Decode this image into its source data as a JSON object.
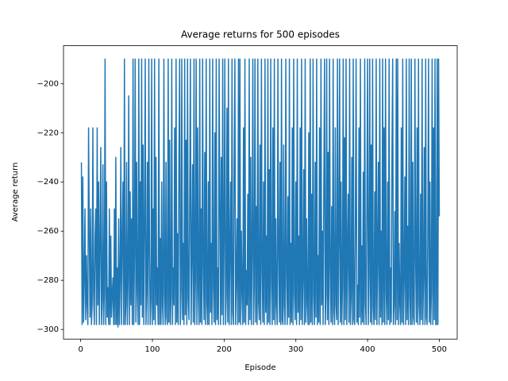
{
  "chart_data": {
    "type": "line",
    "title": "Average returns for 500 episodes",
    "x_label": "Episode",
    "y_label": "Average return",
    "xlim": [
      -23.95,
      524.95
    ],
    "ylim": [
      -303.9,
      -184.6
    ],
    "xticks": [
      0,
      100,
      200,
      300,
      400,
      500
    ],
    "yticks": [
      {
        "value": -300,
        "label": "−300"
      },
      {
        "value": -280,
        "label": "−280"
      },
      {
        "value": -260,
        "label": "−260"
      },
      {
        "value": -240,
        "label": "−240"
      },
      {
        "value": -220,
        "label": "−220"
      },
      {
        "value": -200,
        "label": "−200"
      }
    ],
    "grid": false,
    "series": [
      {
        "color": "#1f77b4",
        "x": [
          1,
          2,
          3,
          4,
          5,
          6,
          7,
          8,
          9,
          10,
          11,
          12,
          13,
          14,
          15,
          16,
          17,
          18,
          19,
          20,
          21,
          22,
          23,
          24,
          25,
          26,
          27,
          28,
          29,
          30,
          31,
          32,
          33,
          34,
          35,
          36,
          37,
          38,
          39,
          40,
          41,
          42,
          43,
          44,
          45,
          46,
          47,
          48,
          49,
          50,
          51,
          52,
          53,
          54,
          55,
          56,
          57,
          58,
          59,
          60,
          61,
          62,
          63,
          64,
          65,
          66,
          67,
          68,
          69,
          70,
          71,
          72,
          73,
          74,
          75,
          76,
          77,
          78,
          79,
          80,
          81,
          82,
          83,
          84,
          85,
          86,
          87,
          88,
          89,
          90,
          91,
          92,
          93,
          94,
          95,
          96,
          97,
          98,
          99,
          100,
          101,
          102,
          103,
          104,
          105,
          106,
          107,
          108,
          109,
          110,
          111,
          112,
          113,
          114,
          115,
          116,
          117,
          118,
          119,
          120,
          121,
          122,
          123,
          124,
          125,
          126,
          127,
          128,
          129,
          130,
          131,
          132,
          133,
          134,
          135,
          136,
          137,
          138,
          139,
          140,
          141,
          142,
          143,
          144,
          145,
          146,
          147,
          148,
          149,
          150,
          151,
          152,
          153,
          154,
          155,
          156,
          157,
          158,
          159,
          160,
          161,
          162,
          163,
          164,
          165,
          166,
          167,
          168,
          169,
          170,
          171,
          172,
          173,
          174,
          175,
          176,
          177,
          178,
          179,
          180,
          181,
          182,
          183,
          184,
          185,
          186,
          187,
          188,
          189,
          190,
          191,
          192,
          193,
          194,
          195,
          196,
          197,
          198,
          199,
          200,
          201,
          202,
          203,
          204,
          205,
          206,
          207,
          208,
          209,
          210,
          211,
          212,
          213,
          214,
          215,
          216,
          217,
          218,
          219,
          220,
          221,
          222,
          223,
          224,
          225,
          226,
          227,
          228,
          229,
          230,
          231,
          232,
          233,
          234,
          235,
          236,
          237,
          238,
          239,
          240,
          241,
          242,
          243,
          244,
          245,
          246,
          247,
          248,
          249,
          250,
          251,
          252,
          253,
          254,
          255,
          256,
          257,
          258,
          259,
          260,
          261,
          262,
          263,
          264,
          265,
          266,
          267,
          268,
          269,
          270,
          271,
          272,
          273,
          274,
          275,
          276,
          277,
          278,
          279,
          280,
          281,
          282,
          283,
          284,
          285,
          286,
          287,
          288,
          289,
          290,
          291,
          292,
          293,
          294,
          295,
          296,
          297,
          298,
          299,
          300,
          301,
          302,
          303,
          304,
          305,
          306,
          307,
          308,
          309,
          310,
          311,
          312,
          313,
          314,
          315,
          316,
          317,
          318,
          319,
          320,
          321,
          322,
          323,
          324,
          325,
          326,
          327,
          328,
          329,
          330,
          331,
          332,
          333,
          334,
          335,
          336,
          337,
          338,
          339,
          340,
          341,
          342,
          343,
          344,
          345,
          346,
          347,
          348,
          349,
          350,
          351,
          352,
          353,
          354,
          355,
          356,
          357,
          358,
          359,
          360,
          361,
          362,
          363,
          364,
          365,
          366,
          367,
          368,
          369,
          370,
          371,
          372,
          373,
          374,
          375,
          376,
          377,
          378,
          379,
          380,
          381,
          382,
          383,
          384,
          385,
          386,
          387,
          388,
          389,
          390,
          391,
          392,
          393,
          394,
          395,
          396,
          397,
          398,
          399,
          400,
          401,
          402,
          403,
          404,
          405,
          406,
          407,
          408,
          409,
          410,
          411,
          412,
          413,
          414,
          415,
          416,
          417,
          418,
          419,
          420,
          421,
          422,
          423,
          424,
          425,
          426,
          427,
          428,
          429,
          430,
          431,
          432,
          433,
          434,
          435,
          436,
          437,
          438,
          439,
          440,
          441,
          442,
          443,
          444,
          445,
          446,
          447,
          448,
          449,
          450,
          451,
          452,
          453,
          454,
          455,
          456,
          457,
          458,
          459,
          460,
          461,
          462,
          463,
          464,
          465,
          466,
          467,
          468,
          469,
          470,
          471,
          472,
          473,
          474,
          475,
          476,
          477,
          478,
          479,
          480,
          481,
          482,
          483,
          484,
          485,
          486,
          487,
          488,
          489,
          490,
          491,
          492,
          493,
          494,
          495,
          496,
          497,
          498,
          499,
          500
        ],
        "values": [
          -232,
          -298,
          -238,
          -297,
          -280,
          -251,
          -296,
          -270,
          -290,
          -298,
          -218,
          -260,
          -295,
          -251,
          -298,
          -290,
          -218,
          -285,
          -298,
          -263,
          -251,
          -298,
          -218,
          -290,
          -240,
          -298,
          -265,
          -226,
          -298,
          -288,
          -233,
          -298,
          -285,
          -190,
          -298,
          -240,
          -295,
          -283,
          -298,
          -251,
          -298,
          -262,
          -295,
          -286,
          -279,
          -298,
          -251,
          -298,
          -230,
          -298,
          -275,
          -299,
          -255,
          -298,
          -280,
          -226,
          -298,
          -264,
          -240,
          -298,
          -190,
          -298,
          -290,
          -232,
          -298,
          -280,
          -205,
          -298,
          -244,
          -290,
          -255,
          -298,
          -190,
          -298,
          -270,
          -190,
          -297,
          -232,
          -285,
          -298,
          -190,
          -298,
          -240,
          -290,
          -190,
          -295,
          -225,
          -298,
          -261,
          -190,
          -298,
          -285,
          -232,
          -298,
          -190,
          -270,
          -298,
          -288,
          -190,
          -298,
          -251,
          -296,
          -190,
          -298,
          -230,
          -290,
          -275,
          -298,
          -190,
          -298,
          -263,
          -298,
          -240,
          -290,
          -298,
          -190,
          -285,
          -298,
          -232,
          -295,
          -298,
          -190,
          -297,
          -223,
          -298,
          -286,
          -190,
          -298,
          -275,
          -290,
          -218,
          -298,
          -190,
          -297,
          -261,
          -298,
          -232,
          -190,
          -298,
          -284,
          -190,
          -296,
          -265,
          -298,
          -190,
          -294,
          -223,
          -298,
          -190,
          -288,
          -296,
          -248,
          -190,
          -298,
          -270,
          -233,
          -297,
          -190,
          -298,
          -280,
          -190,
          -298,
          -218,
          -285,
          -298,
          -190,
          -297,
          -251,
          -298,
          -190,
          -275,
          -296,
          -228,
          -298,
          -190,
          -289,
          -298,
          -240,
          -298,
          -190,
          -293,
          -265,
          -298,
          -190,
          -282,
          -297,
          -220,
          -298,
          -190,
          -296,
          -275,
          -298,
          -190,
          -250,
          -298,
          -230,
          -294,
          -190,
          -298,
          -262,
          -190,
          -298,
          -286,
          -210,
          -297,
          -190,
          -298,
          -270,
          -240,
          -298,
          -190,
          -293,
          -298,
          -232,
          -190,
          -298,
          -280,
          -255,
          -298,
          -190,
          -297,
          -190,
          -298,
          -260,
          -285,
          -298,
          -218,
          -297,
          -190,
          -298,
          -276,
          -290,
          -245,
          -298,
          -190,
          -296,
          -230,
          -298,
          -270,
          -190,
          -298,
          -283,
          -190,
          -297,
          -250,
          -298,
          -190,
          -289,
          -296,
          -225,
          -298,
          -190,
          -275,
          -297,
          -240,
          -298,
          -190,
          -293,
          -262,
          -298,
          -190,
          -297,
          -235,
          -298,
          -190,
          -280,
          -298,
          -218,
          -296,
          -190,
          -298,
          -255,
          -290,
          -298,
          -190,
          -270,
          -297,
          -232,
          -298,
          -190,
          -296,
          -298,
          -225,
          -290,
          -298,
          -190,
          -277,
          -298,
          -246,
          -295,
          -190,
          -298,
          -265,
          -297,
          -218,
          -298,
          -190,
          -285,
          -296,
          -240,
          -298,
          -190,
          -293,
          -262,
          -298,
          -218,
          -296,
          -190,
          -298,
          -280,
          -235,
          -298,
          -190,
          -297,
          -255,
          -290,
          -298,
          -220,
          -298,
          -190,
          -297,
          -245,
          -298,
          -190,
          -286,
          -298,
          -232,
          -295,
          -190,
          -298,
          -270,
          -297,
          -218,
          -298,
          -190,
          -290,
          -260,
          -298,
          -240,
          -190,
          -298,
          -285,
          -190,
          -296,
          -228,
          -298,
          -190,
          -275,
          -297,
          -250,
          -298,
          -190,
          -292,
          -298,
          -218,
          -290,
          -296,
          -190,
          -298,
          -265,
          -190,
          -297,
          -240,
          -298,
          -283,
          -190,
          -298,
          -222,
          -296,
          -190,
          -298,
          -270,
          -245,
          -297,
          -190,
          -298,
          -287,
          -230,
          -298,
          -190,
          -296,
          -298,
          -255,
          -190,
          -297,
          -282,
          -298,
          -218,
          -295,
          -190,
          -298,
          -266,
          -297,
          -236,
          -298,
          -190,
          -289,
          -298,
          -250,
          -190,
          -298,
          -278,
          -190,
          -297,
          -225,
          -298,
          -190,
          -291,
          -298,
          -244,
          -296,
          -190,
          -298,
          -270,
          -232,
          -298,
          -190,
          -295,
          -260,
          -298,
          -190,
          -297,
          -218,
          -298,
          -190,
          -285,
          -298,
          -240,
          -296,
          -190,
          -298,
          -275,
          -297,
          -228,
          -190,
          -298,
          -290,
          -252,
          -298,
          -190,
          -296,
          -190,
          -298,
          -265,
          -290,
          -298,
          -218,
          -297,
          -190,
          -298,
          -280,
          -238,
          -298,
          -190,
          -296,
          -258,
          -298,
          -190,
          -287,
          -298,
          -190,
          -298,
          -232,
          -295,
          -298,
          -190,
          -272,
          -297,
          -218,
          -298,
          -190,
          -290,
          -298,
          -245,
          -296,
          -190,
          -298,
          -280,
          -226,
          -298,
          -190,
          -295,
          -298,
          -260,
          -190,
          -297,
          -240,
          -298,
          -285,
          -190,
          -298,
          -218,
          -296,
          -190,
          -298,
          -298,
          -190,
          -298,
          -190,
          -254
        ]
      }
    ]
  }
}
